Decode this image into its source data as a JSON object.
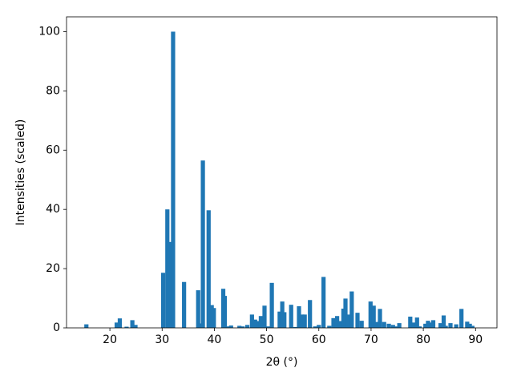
{
  "chart_data": {
    "type": "bar",
    "xlabel": "2θ (°)",
    "ylabel": "Intensities (scaled)",
    "color": "#1f77b4",
    "xlim": [
      11.7,
      94.1
    ],
    "ylim": [
      0,
      105
    ],
    "xticks": [
      20,
      30,
      40,
      50,
      60,
      70,
      80,
      90
    ],
    "yticks": [
      0,
      20,
      40,
      60,
      80,
      100
    ],
    "grid": false,
    "x": [
      15.5,
      21.3,
      21.9,
      23.2,
      24.3,
      24.9,
      30.2,
      31.0,
      31.5,
      32.1,
      34.2,
      36.9,
      37.4,
      37.8,
      38.9,
      39.5,
      39.9,
      41.7,
      42.0,
      42.5,
      43.2,
      44.8,
      45.4,
      46.3,
      47.2,
      47.8,
      48.4,
      48.9,
      49.6,
      50.2,
      51.0,
      52.5,
      53.0,
      53.4,
      54.7,
      55.5,
      56.2,
      56.8,
      57.3,
      58.3,
      59.3,
      60.0,
      60.9,
      62.0,
      62.8,
      63.5,
      64.0,
      64.7,
      65.1,
      65.6,
      66.3,
      67.4,
      68.2,
      69.9,
      70.5,
      71.0,
      71.7,
      72.5,
      73.4,
      74.2,
      74.6,
      75.4,
      77.5,
      78.1,
      78.8,
      79.3,
      80.4,
      80.9,
      81.5,
      81.9,
      83.3,
      83.9,
      84.3,
      85.2,
      86.3,
      87.3,
      88.4,
      88.9,
      89.4
    ],
    "values": [
      1.2,
      1.8,
      3.2,
      0.4,
      2.6,
      1.0,
      18.6,
      40,
      29,
      100,
      15.5,
      12.7,
      1.5,
      56.5,
      39.7,
      7.7,
      6.7,
      13.2,
      10.8,
      0.5,
      0.8,
      0.7,
      0.5,
      1.0,
      4.5,
      2.8,
      2.3,
      4.0,
      7.5,
      0.5,
      15.2,
      5.5,
      8.9,
      5.3,
      7.8,
      0.3,
      7.3,
      4.5,
      4.5,
      9.4,
      0.5,
      1.0,
      17.2,
      0.7,
      3.3,
      4.0,
      2.3,
      6.5,
      9.9,
      4.5,
      12.3,
      5.1,
      2.4,
      8.9,
      7.5,
      2.0,
      6.4,
      2.0,
      1.4,
      1.0,
      0.5,
      1.6,
      3.8,
      1.8,
      3.5,
      0.5,
      1.4,
      2.4,
      1.8,
      2.6,
      1.6,
      4.2,
      0.7,
      1.6,
      1.2,
      6.4,
      2.1,
      1.4,
      0.7
    ]
  }
}
